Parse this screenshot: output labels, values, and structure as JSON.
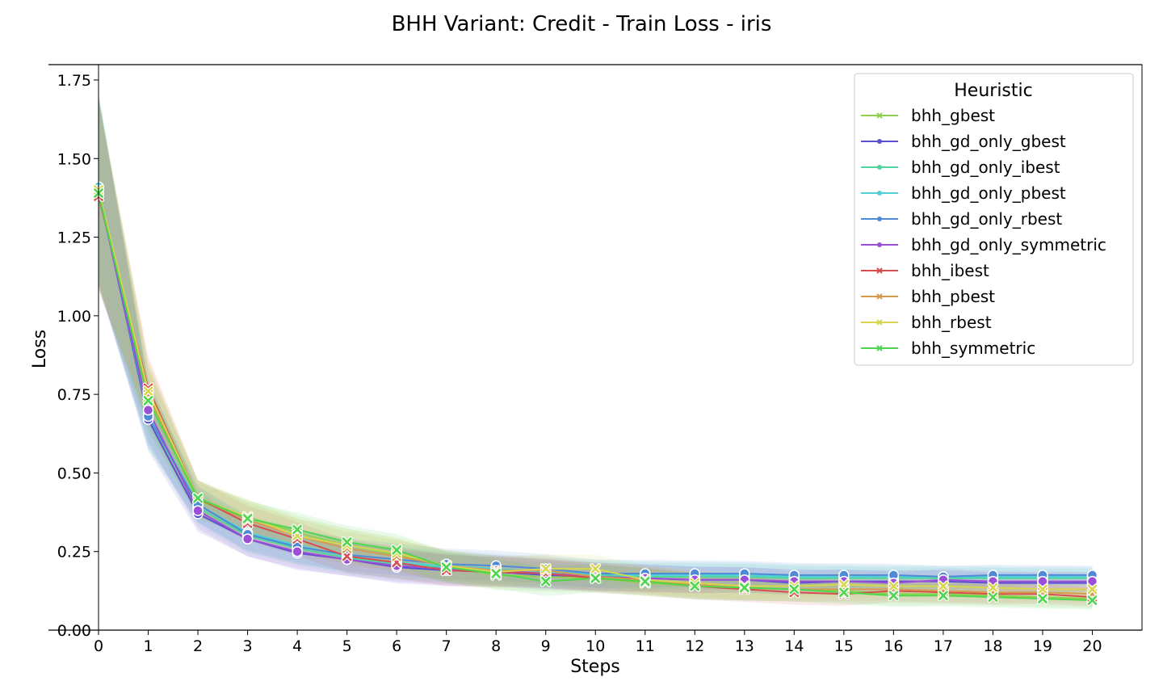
{
  "chart_data": {
    "type": "line",
    "title": "BHH Variant: Credit - Train Loss - iris",
    "xlabel": "Steps",
    "ylabel": "Loss",
    "xlim": [
      0,
      21
    ],
    "ylim": [
      0.0,
      1.8
    ],
    "x": [
      0,
      1,
      2,
      3,
      4,
      5,
      6,
      7,
      8,
      9,
      10,
      11,
      12,
      13,
      14,
      15,
      16,
      17,
      18,
      19,
      20
    ],
    "x_ticks": [
      "0",
      "1",
      "2",
      "3",
      "4",
      "5",
      "6",
      "7",
      "8",
      "9",
      "10",
      "11",
      "12",
      "13",
      "14",
      "15",
      "16",
      "17",
      "18",
      "19",
      "20"
    ],
    "y_ticks": [
      {
        "value": 0.0,
        "label": "0.00"
      },
      {
        "value": 0.25,
        "label": "0.25"
      },
      {
        "value": 0.5,
        "label": "0.50"
      },
      {
        "value": 0.75,
        "label": "0.75"
      },
      {
        "value": 1.0,
        "label": "1.00"
      },
      {
        "value": 1.25,
        "label": "1.25"
      },
      {
        "value": 1.5,
        "label": "1.50"
      },
      {
        "value": 1.75,
        "label": "1.75"
      }
    ],
    "grid": false,
    "legend": {
      "title": "Heuristic",
      "placement": "top-right"
    },
    "series": [
      {
        "name": "bhh_gbest",
        "color": "#8fd14f",
        "marker": "x",
        "values": [
          1.39,
          0.74,
          0.41,
          0.36,
          0.31,
          0.27,
          0.24,
          0.2,
          0.175,
          0.17,
          0.165,
          0.15,
          0.14,
          0.135,
          0.13,
          0.125,
          0.115,
          0.115,
          0.11,
          0.105,
          0.1
        ]
      },
      {
        "name": "bhh_gd_only_gbest",
        "color": "#5b4fd6",
        "marker": "o",
        "values": [
          1.4,
          0.67,
          0.37,
          0.29,
          0.245,
          0.225,
          0.2,
          0.19,
          0.185,
          0.175,
          0.17,
          0.165,
          0.16,
          0.16,
          0.15,
          0.155,
          0.155,
          0.155,
          0.15,
          0.15,
          0.15
        ]
      },
      {
        "name": "bhh_gd_only_ibest",
        "color": "#4fd6a0",
        "marker": "o",
        "values": [
          1.41,
          0.68,
          0.39,
          0.3,
          0.26,
          0.23,
          0.21,
          0.2,
          0.19,
          0.18,
          0.175,
          0.17,
          0.17,
          0.17,
          0.165,
          0.165,
          0.165,
          0.165,
          0.165,
          0.165,
          0.165
        ]
      },
      {
        "name": "bhh_gd_only_pbest",
        "color": "#4fd1d6",
        "marker": "o",
        "values": [
          1.41,
          0.69,
          0.4,
          0.31,
          0.27,
          0.235,
          0.215,
          0.205,
          0.195,
          0.185,
          0.18,
          0.175,
          0.175,
          0.175,
          0.17,
          0.17,
          0.17,
          0.17,
          0.17,
          0.17,
          0.17
        ]
      },
      {
        "name": "bhh_gd_only_rbest",
        "color": "#4f8ad6",
        "marker": "o",
        "values": [
          1.4,
          0.68,
          0.4,
          0.305,
          0.265,
          0.24,
          0.225,
          0.21,
          0.205,
          0.195,
          0.18,
          0.18,
          0.18,
          0.18,
          0.175,
          0.175,
          0.175,
          0.17,
          0.175,
          0.175,
          0.175
        ]
      },
      {
        "name": "bhh_gd_only_symmetric",
        "color": "#9b4fd6",
        "marker": "o",
        "values": [
          1.39,
          0.7,
          0.38,
          0.29,
          0.25,
          0.225,
          0.205,
          0.195,
          0.19,
          0.18,
          0.17,
          0.165,
          0.16,
          0.16,
          0.155,
          0.155,
          0.15,
          0.16,
          0.155,
          0.155,
          0.155
        ]
      },
      {
        "name": "bhh_ibest",
        "color": "#d64f4f",
        "marker": "x",
        "values": [
          1.38,
          0.77,
          0.42,
          0.34,
          0.29,
          0.235,
          0.215,
          0.19,
          0.185,
          0.18,
          0.165,
          0.155,
          0.14,
          0.13,
          0.12,
          0.115,
          0.125,
          0.12,
          0.115,
          0.115,
          0.105
        ]
      },
      {
        "name": "bhh_pbest",
        "color": "#d69a4f",
        "marker": "x",
        "values": [
          1.39,
          0.75,
          0.42,
          0.35,
          0.3,
          0.26,
          0.235,
          0.205,
          0.19,
          0.19,
          0.17,
          0.16,
          0.145,
          0.135,
          0.13,
          0.13,
          0.13,
          0.125,
          0.12,
          0.12,
          0.115
        ]
      },
      {
        "name": "bhh_rbest",
        "color": "#d6d64f",
        "marker": "x",
        "values": [
          1.4,
          0.76,
          0.42,
          0.36,
          0.3,
          0.27,
          0.245,
          0.205,
          0.185,
          0.195,
          0.195,
          0.16,
          0.15,
          0.14,
          0.14,
          0.145,
          0.14,
          0.14,
          0.135,
          0.13,
          0.13
        ]
      },
      {
        "name": "bhh_symmetric",
        "color": "#4fd64f",
        "marker": "x",
        "values": [
          1.39,
          0.73,
          0.42,
          0.355,
          0.32,
          0.28,
          0.255,
          0.2,
          0.18,
          0.155,
          0.165,
          0.155,
          0.14,
          0.135,
          0.13,
          0.12,
          0.11,
          0.11,
          0.105,
          0.1,
          0.095
        ]
      }
    ]
  }
}
